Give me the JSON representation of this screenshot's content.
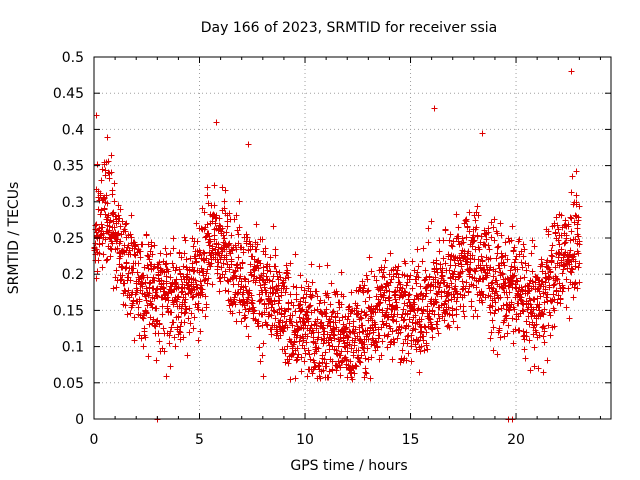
{
  "chart_data": {
    "type": "scatter",
    "title": "Day 166 of 2023, SRMTID for receiver ssia",
    "xlabel": "GPS time / hours",
    "ylabel": "SRMTID / TECUs",
    "xlim": [
      0,
      24.5
    ],
    "ylim": [
      0,
      0.5
    ],
    "xticks": [
      0,
      5,
      10,
      15,
      20
    ],
    "xtick_labels": [
      "0",
      "5",
      "10",
      "15",
      "20"
    ],
    "yticks": [
      0,
      0.05,
      0.1,
      0.15,
      0.2,
      0.25,
      0.3,
      0.35,
      0.4,
      0.45,
      0.5
    ],
    "ytick_labels": [
      "0",
      "0.05",
      "0.1",
      "0.15",
      "0.2",
      "0.25",
      "0.3",
      "0.35",
      "0.4",
      "0.45",
      "0.5"
    ],
    "grid": true,
    "marker": "+",
    "marker_color": "#dd0000",
    "series": [
      {
        "name": "SRMTID",
        "hourly_trend": [
          {
            "x": 0.0,
            "y": 0.25
          },
          {
            "x": 0.5,
            "y": 0.29
          },
          {
            "x": 1.0,
            "y": 0.26
          },
          {
            "x": 1.5,
            "y": 0.22
          },
          {
            "x": 2.0,
            "y": 0.19
          },
          {
            "x": 3.0,
            "y": 0.17
          },
          {
            "x": 4.0,
            "y": 0.17
          },
          {
            "x": 5.0,
            "y": 0.2
          },
          {
            "x": 5.5,
            "y": 0.25
          },
          {
            "x": 6.0,
            "y": 0.24
          },
          {
            "x": 7.0,
            "y": 0.2
          },
          {
            "x": 8.0,
            "y": 0.18
          },
          {
            "x": 9.0,
            "y": 0.14
          },
          {
            "x": 10.0,
            "y": 0.13
          },
          {
            "x": 11.0,
            "y": 0.12
          },
          {
            "x": 12.0,
            "y": 0.11
          },
          {
            "x": 13.0,
            "y": 0.13
          },
          {
            "x": 14.0,
            "y": 0.17
          },
          {
            "x": 15.0,
            "y": 0.14
          },
          {
            "x": 16.0,
            "y": 0.17
          },
          {
            "x": 17.0,
            "y": 0.2
          },
          {
            "x": 18.0,
            "y": 0.22
          },
          {
            "x": 19.0,
            "y": 0.19
          },
          {
            "x": 20.0,
            "y": 0.18
          },
          {
            "x": 21.0,
            "y": 0.15
          },
          {
            "x": 22.0,
            "y": 0.22
          },
          {
            "x": 23.0,
            "y": 0.25
          }
        ],
        "notable_points": [
          {
            "x": 0.1,
            "y": 0.42
          },
          {
            "x": 0.6,
            "y": 0.39
          },
          {
            "x": 5.8,
            "y": 0.41
          },
          {
            "x": 7.3,
            "y": 0.38
          },
          {
            "x": 16.1,
            "y": 0.43
          },
          {
            "x": 18.4,
            "y": 0.395
          },
          {
            "x": 22.6,
            "y": 0.48
          },
          {
            "x": 3.0,
            "y": 0.0
          },
          {
            "x": 19.6,
            "y": 0.0
          },
          {
            "x": 19.8,
            "y": 0.0
          },
          {
            "x": 3.4,
            "y": 0.06
          },
          {
            "x": 8.0,
            "y": 0.06
          },
          {
            "x": 10.1,
            "y": 0.06
          },
          {
            "x": 12.0,
            "y": 0.058
          },
          {
            "x": 21.3,
            "y": 0.065
          }
        ]
      }
    ]
  }
}
